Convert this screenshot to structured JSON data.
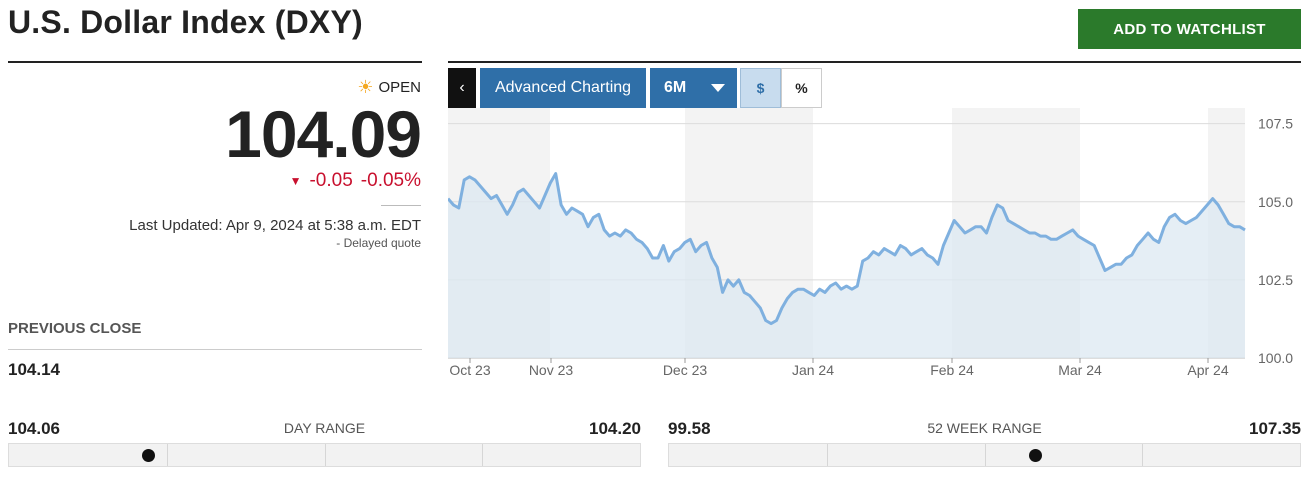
{
  "header": {
    "title": "U.S. Dollar Index (DXY)",
    "watchlist_label": "ADD TO WATCHLIST"
  },
  "quote": {
    "status_icon": "sun-icon",
    "status": "OPEN",
    "price": "104.09",
    "change": "-0.05",
    "change_pct": "-0.05%",
    "updated": "Last Updated: Apr 9, 2024 at 5:38 a.m. EDT",
    "delayed": "- Delayed quote"
  },
  "previous_close": {
    "label": "PREVIOUS CLOSE",
    "value": "104.14"
  },
  "controls": {
    "back_label": "‹",
    "advanced_label": "Advanced Charting",
    "range_label": "6M",
    "dollar_label": "$",
    "percent_label": "%"
  },
  "day_range": {
    "label": "DAY RANGE",
    "low": "104.06",
    "high": "104.20",
    "marker_fraction": 0.22
  },
  "week52_range": {
    "label": "52 WEEK RANGE",
    "low": "99.58",
    "high": "107.35",
    "marker_fraction": 0.58
  },
  "colors": {
    "accent_green": "#2b7a2b",
    "accent_blue": "#2f6fa8",
    "down_red": "#c8102e",
    "line": "#7fb0df",
    "fill": "#dce8f2"
  },
  "chart_data": {
    "type": "area",
    "ylim": [
      100.0,
      108.0
    ],
    "y_ticks": [
      "107.5",
      "105.0",
      "102.5",
      "100.0"
    ],
    "x_tick_labels": [
      "Oct 23",
      "Nov 23",
      "Dec 23",
      "Jan 24",
      "Feb 24",
      "Mar 24",
      "Apr 24"
    ],
    "series": [
      {
        "values": [
          105.1,
          104.9,
          104.8,
          105.7,
          105.8,
          105.7,
          105.5,
          105.3,
          105.1,
          105.2,
          104.9,
          104.6,
          104.9,
          105.3,
          105.4,
          105.2,
          105.0,
          104.8,
          105.2,
          105.6,
          105.9,
          104.9,
          104.6,
          104.8,
          104.7,
          104.6,
          104.2,
          104.5,
          104.6,
          104.1,
          103.9,
          104.0,
          103.9,
          104.1,
          104.0,
          103.8,
          103.7,
          103.5,
          103.2,
          103.2,
          103.6,
          103.1,
          103.4,
          103.5,
          103.7,
          103.8,
          103.4,
          103.6,
          103.7,
          103.2,
          102.9,
          102.1,
          102.5,
          102.3,
          102.5,
          102.1,
          102.0,
          101.8,
          101.6,
          101.2,
          101.1,
          101.2,
          101.6,
          101.9,
          102.1,
          102.2,
          102.2,
          102.1,
          102.0,
          102.2,
          102.1,
          102.3,
          102.4,
          102.2,
          102.3,
          102.2,
          102.3,
          103.1,
          103.2,
          103.4,
          103.3,
          103.5,
          103.4,
          103.3,
          103.6,
          103.5,
          103.3,
          103.4,
          103.5,
          103.3,
          103.2,
          103.0,
          103.6,
          104.0,
          104.4,
          104.2,
          104.0,
          104.1,
          104.2,
          104.2,
          104.0,
          104.5,
          104.9,
          104.8,
          104.4,
          104.3,
          104.2,
          104.1,
          104.0,
          104.0,
          103.9,
          103.9,
          103.8,
          103.8,
          103.9,
          104.0,
          104.1,
          103.9,
          103.8,
          103.7,
          103.6,
          103.2,
          102.8,
          102.9,
          103.0,
          103.0,
          103.2,
          103.3,
          103.6,
          103.8,
          104.0,
          103.8,
          103.7,
          104.2,
          104.5,
          104.6,
          104.4,
          104.3,
          104.4,
          104.5,
          104.7,
          104.9,
          105.1,
          104.9,
          104.6,
          104.3,
          104.2,
          104.2,
          104.1
        ]
      }
    ]
  }
}
